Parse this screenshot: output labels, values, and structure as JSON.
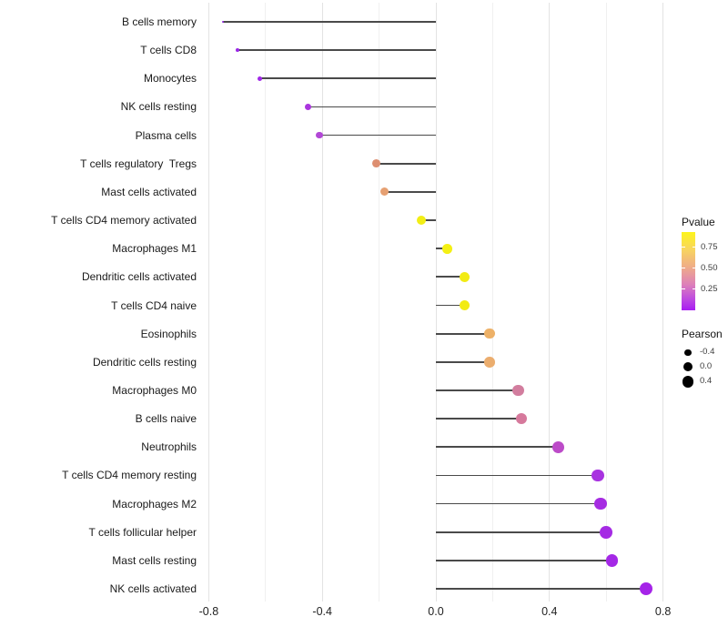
{
  "chart_data": {
    "type": "scatter",
    "variant": "lollipop",
    "title": "",
    "xlabel": "",
    "ylabel": "",
    "grid": true,
    "legend_position": "right",
    "xlim": [
      -0.853,
      0.836
    ],
    "x_axis": {
      "ticks": [
        {
          "label": "-0.8",
          "value": -0.8
        },
        {
          "label": "-0.4",
          "value": -0.4
        },
        {
          "label": "0.0",
          "value": 0.0
        },
        {
          "label": "0.4",
          "value": 0.4
        },
        {
          "label": "0.8",
          "value": 0.8
        }
      ],
      "minor_ticks": [
        -0.6,
        -0.2,
        0.2,
        0.6
      ]
    },
    "points": [
      {
        "label": "B cells memory",
        "pearson": -0.75,
        "color": "#9329e4"
      },
      {
        "label": "T cells CD8",
        "pearson": -0.7,
        "color": "#9a28e6"
      },
      {
        "label": "Monocytes",
        "pearson": -0.62,
        "color": "#a128e8"
      },
      {
        "label": "NK cells resting",
        "pearson": -0.45,
        "color": "#aa36de"
      },
      {
        "label": "Plasma cells",
        "pearson": -0.41,
        "color": "#b248d6"
      },
      {
        "label": "T cells regulatory  Tregs",
        "pearson": -0.21,
        "color": "#dd8e70"
      },
      {
        "label": "Mast cells activated",
        "pearson": -0.18,
        "color": "#e6a072"
      },
      {
        "label": "T cells CD4 memory activated",
        "pearson": -0.05,
        "color": "#f2ee15"
      },
      {
        "label": "Macrophages M1",
        "pearson": 0.04,
        "color": "#f4f014"
      },
      {
        "label": "Dendritic cells activated",
        "pearson": 0.1,
        "color": "#f2eb13"
      },
      {
        "label": "T cells CD4 naive",
        "pearson": 0.1,
        "color": "#f2eb13"
      },
      {
        "label": "Eosinophils",
        "pearson": 0.19,
        "color": "#edb168"
      },
      {
        "label": "Dendritic cells resting",
        "pearson": 0.19,
        "color": "#ebad6e"
      },
      {
        "label": "Macrophages M0",
        "pearson": 0.29,
        "color": "#d27d9e"
      },
      {
        "label": "B cells naive",
        "pearson": 0.3,
        "color": "#d6799c"
      },
      {
        "label": "Neutrophils",
        "pearson": 0.43,
        "color": "#bc4bc8"
      },
      {
        "label": "T cells CD4 memory resting",
        "pearson": 0.57,
        "color": "#a832e0"
      },
      {
        "label": "Macrophages M2",
        "pearson": 0.58,
        "color": "#a62ce2"
      },
      {
        "label": "T cells follicular helper",
        "pearson": 0.6,
        "color": "#a52be4"
      },
      {
        "label": "Mast cells resting",
        "pearson": 0.62,
        "color": "#a428e6"
      },
      {
        "label": "NK cells activated",
        "pearson": 0.74,
        "color": "#a524e8"
      }
    ],
    "legend": {
      "pvalue": {
        "title": "Pvalue",
        "range": [
          0,
          0.93
        ],
        "ticks": [
          {
            "label": "0.75",
            "value": 0.75
          },
          {
            "label": "0.50",
            "value": 0.5
          },
          {
            "label": "0.25",
            "value": 0.25
          }
        ],
        "gradient": [
          {
            "color": "#fdf51b",
            "pos": 0
          },
          {
            "color": "#f8d55e",
            "pos": 22
          },
          {
            "color": "#efab89",
            "pos": 45
          },
          {
            "color": "#dd80b9",
            "pos": 67
          },
          {
            "color": "#c050dd",
            "pos": 84
          },
          {
            "color": "#a81df2",
            "pos": 100
          }
        ]
      },
      "pearson": {
        "title": "Pearson",
        "items": [
          {
            "label": "-0.4",
            "value": -0.4
          },
          {
            "label": "0.0",
            "value": 0.0
          },
          {
            "label": "0.4",
            "value": 0.4
          }
        ]
      }
    }
  }
}
